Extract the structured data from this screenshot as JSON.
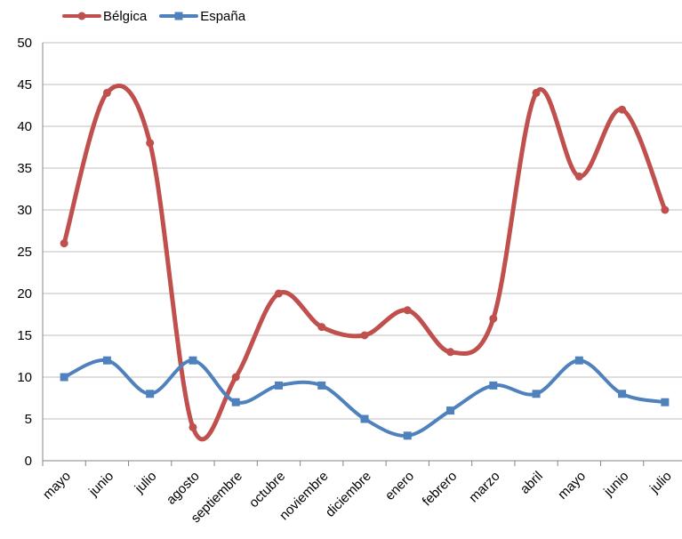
{
  "chart_data": {
    "type": "line",
    "categories": [
      "mayo",
      "junio",
      "julio",
      "agosto",
      "septiembre",
      "octubre",
      "noviembre",
      "diciembre",
      "enero",
      "febrero",
      "marzo",
      "abril",
      "mayo",
      "junio",
      "julio"
    ],
    "series": [
      {
        "name": "Bélgica",
        "values": [
          26,
          44,
          38,
          4,
          10,
          20,
          16,
          15,
          18,
          13,
          17,
          44,
          34,
          42,
          30
        ],
        "color": "#c0504d",
        "marker": "circle"
      },
      {
        "name": "España",
        "values": [
          10,
          12,
          8,
          12,
          7,
          9,
          9,
          5,
          3,
          6,
          9,
          8,
          12,
          8,
          7
        ],
        "color": "#4f81bd",
        "marker": "square"
      }
    ],
    "ylim": [
      0,
      50
    ],
    "yticks": [
      0,
      5,
      10,
      15,
      20,
      25,
      30,
      35,
      40,
      45,
      50
    ],
    "grid": true,
    "smooth": true,
    "legend_position": "top-left",
    "title": "",
    "xlabel": "",
    "ylabel": ""
  }
}
